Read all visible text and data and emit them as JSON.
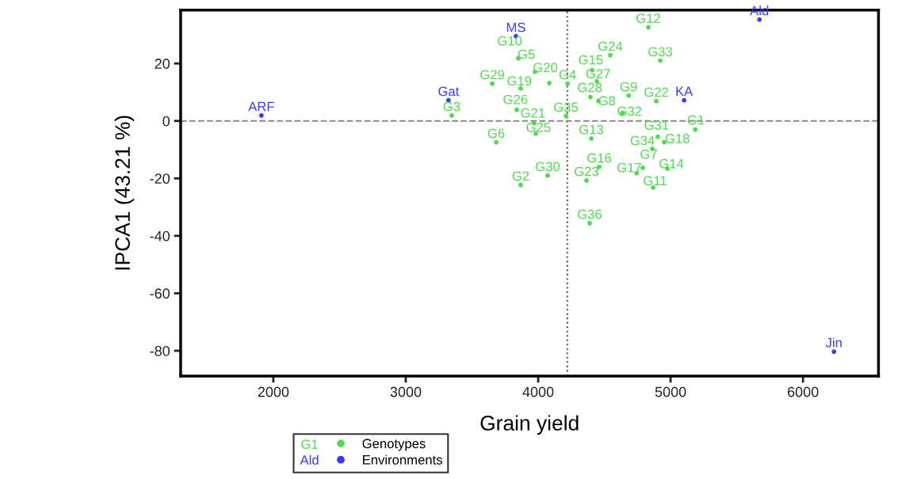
{
  "chart_data": {
    "type": "scatter",
    "xlabel": "Grain yield",
    "ylabel": "IPCA1 (43.21 %)",
    "xlim": [
      1300,
      6570
    ],
    "ylim": [
      -88.8,
      38.6
    ],
    "xticks": [
      2000,
      3000,
      4000,
      5000,
      6000
    ],
    "yticks": [
      -80,
      -60,
      -40,
      -20,
      0,
      20
    ],
    "grid": false,
    "legend": "bottom",
    "marker": "circle",
    "ref_lines": [
      {
        "axis": "x",
        "value": 4220,
        "line_style": "dotted",
        "color": "#555555"
      },
      {
        "axis": "y",
        "value": 0,
        "line_style": "dashed",
        "color": "#888888"
      }
    ],
    "series": [
      {
        "name": "Genotypes",
        "color": "#4cdc4c",
        "x": [
          5186,
          3868,
          3347,
          4222,
          3976,
          3683,
          4790,
          4455,
          4683,
          3850,
          4868,
          4832,
          4401,
          4976,
          4407,
          4461,
          4743,
          4952,
          3868,
          4084,
          3970,
          4892,
          4365,
          4545,
          3982,
          3838,
          4443,
          4395,
          3653,
          4072,
          4904,
          4635,
          4922,
          4862,
          4210,
          4389
        ],
        "values": [
          -3.0,
          -22.3,
          1.9,
          13.0,
          17.1,
          -7.4,
          -16.3,
          6.9,
          8.8,
          21.8,
          -23.2,
          32.6,
          -6.1,
          -16.6,
          17.7,
          -16.0,
          -18.2,
          -7.4,
          11.3,
          13.2,
          -0.8,
          6.9,
          -20.7,
          22.9,
          -4.4,
          3.9,
          13.8,
          8.3,
          13.0,
          -19.0,
          -5.5,
          2.8,
          21.0,
          -9.7,
          1.7,
          -35.6
        ],
        "value_labels": [
          "G1",
          "G2",
          "G3",
          "G4",
          "G5",
          "G6",
          "G7",
          "G8",
          "G9",
          "G10",
          "G11",
          "G12",
          "G13",
          "G14",
          "G15",
          "G16",
          "G17",
          "G18",
          "G19",
          "G20",
          "G21",
          "G22",
          "G23",
          "G24",
          "G25",
          "G26",
          "G27",
          "G28",
          "G29",
          "G30",
          "G31",
          "G32",
          "G33",
          "G34",
          "G35",
          "G36"
        ]
      },
      {
        "name": "Environments",
        "color": "#3a3aff",
        "x": [
          5671,
          1910,
          3323,
          6234,
          5102,
          3832
        ],
        "values": [
          35.3,
          1.9,
          7.2,
          -80.3,
          7.2,
          29.5
        ],
        "value_labels": [
          "Ald",
          "ARF",
          "Gat",
          "Jin",
          "KA",
          "MS"
        ]
      }
    ]
  }
}
